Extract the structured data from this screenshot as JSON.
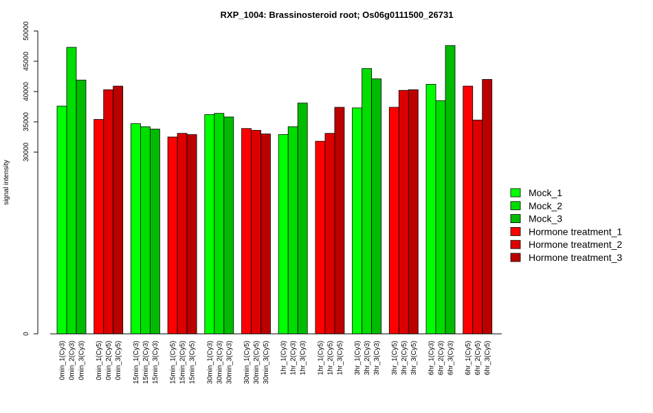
{
  "chart_data": {
    "type": "bar",
    "title": "RXP_1004: Brassinosteroid root; Os06g0111500_26731",
    "ylabel": "signal intensity",
    "xlabel": "",
    "ylim": [
      0,
      50000
    ],
    "yticks": [
      0,
      30000,
      35000,
      40000,
      45000,
      50000
    ],
    "legend_position": "right",
    "legend": [
      {
        "label": "Mock_1",
        "color": "#00ff00"
      },
      {
        "label": "Mock_2",
        "color": "#00dd00"
      },
      {
        "label": "Mock_3",
        "color": "#00bb00"
      },
      {
        "label": "Hormone treatment_1",
        "color": "#ff0000"
      },
      {
        "label": "Hormone treatment_2",
        "color": "#dd0000"
      },
      {
        "label": "Hormone treatment_3",
        "color": "#bb0000"
      }
    ],
    "groups": [
      {
        "labels": [
          "0min_1(Cy3)",
          "0min_2(Cy3)",
          "0min_3(Cy3)"
        ],
        "values": [
          37600,
          47300,
          41900
        ],
        "colors": [
          "#00ff00",
          "#00dd00",
          "#00bb00"
        ]
      },
      {
        "labels": [
          "0min_1(Cy5)",
          "0min_2(Cy5)",
          "0min_3(Cy5)"
        ],
        "values": [
          35400,
          40300,
          40900
        ],
        "colors": [
          "#ff0000",
          "#dd0000",
          "#bb0000"
        ]
      },
      {
        "labels": [
          "15min_1(Cy3)",
          "15min_2(Cy3)",
          "15min_3(Cy3)"
        ],
        "values": [
          34700,
          34200,
          33800
        ],
        "colors": [
          "#00ff00",
          "#00dd00",
          "#00bb00"
        ]
      },
      {
        "labels": [
          "15min_1(Cy5)",
          "15min_2(Cy5)",
          "15min_3(Cy5)"
        ],
        "values": [
          32500,
          33100,
          32900
        ],
        "colors": [
          "#ff0000",
          "#dd0000",
          "#bb0000"
        ]
      },
      {
        "labels": [
          "30min_1(Cy3)",
          "30min_2(Cy3)",
          "30min_3(Cy3)"
        ],
        "values": [
          36200,
          36400,
          35800
        ],
        "colors": [
          "#00ff00",
          "#00dd00",
          "#00bb00"
        ]
      },
      {
        "labels": [
          "30min_1(Cy5)",
          "30min_2(Cy5)",
          "30min_3(Cy5)"
        ],
        "values": [
          33900,
          33600,
          33000
        ],
        "colors": [
          "#ff0000",
          "#dd0000",
          "#bb0000"
        ]
      },
      {
        "labels": [
          "1hr_1(Cy3)",
          "1hr_2(Cy3)",
          "1hr_3(Cy3)"
        ],
        "values": [
          32900,
          34200,
          38100
        ],
        "colors": [
          "#00ff00",
          "#00dd00",
          "#00bb00"
        ]
      },
      {
        "labels": [
          "1hr_1(Cy5)",
          "1hr_2(Cy5)",
          "1hr_3(Cy5)"
        ],
        "values": [
          31800,
          33100,
          37400
        ],
        "colors": [
          "#ff0000",
          "#dd0000",
          "#bb0000"
        ]
      },
      {
        "labels": [
          "3hr_1(Cy3)",
          "3hr_2(Cy3)",
          "3hr_3(Cy3)"
        ],
        "values": [
          37300,
          43800,
          42100
        ],
        "colors": [
          "#00ff00",
          "#00dd00",
          "#00bb00"
        ]
      },
      {
        "labels": [
          "3hr_1(Cy5)",
          "3hr_2(Cy5)",
          "3hr_3(Cy5)"
        ],
        "values": [
          37400,
          40200,
          40300
        ],
        "colors": [
          "#ff0000",
          "#dd0000",
          "#bb0000"
        ]
      },
      {
        "labels": [
          "6hr_1(Cy3)",
          "6hr_2(Cy3)",
          "6hr_3(Cy3)"
        ],
        "values": [
          41200,
          38500,
          47600
        ],
        "colors": [
          "#00ff00",
          "#00dd00",
          "#00bb00"
        ]
      },
      {
        "labels": [
          "6hr_1(Cy5)",
          "6hr_2(Cy5)",
          "6hr_3(Cy5)"
        ],
        "values": [
          40900,
          35300,
          42000
        ],
        "colors": [
          "#ff0000",
          "#dd0000",
          "#bb0000"
        ]
      }
    ]
  }
}
